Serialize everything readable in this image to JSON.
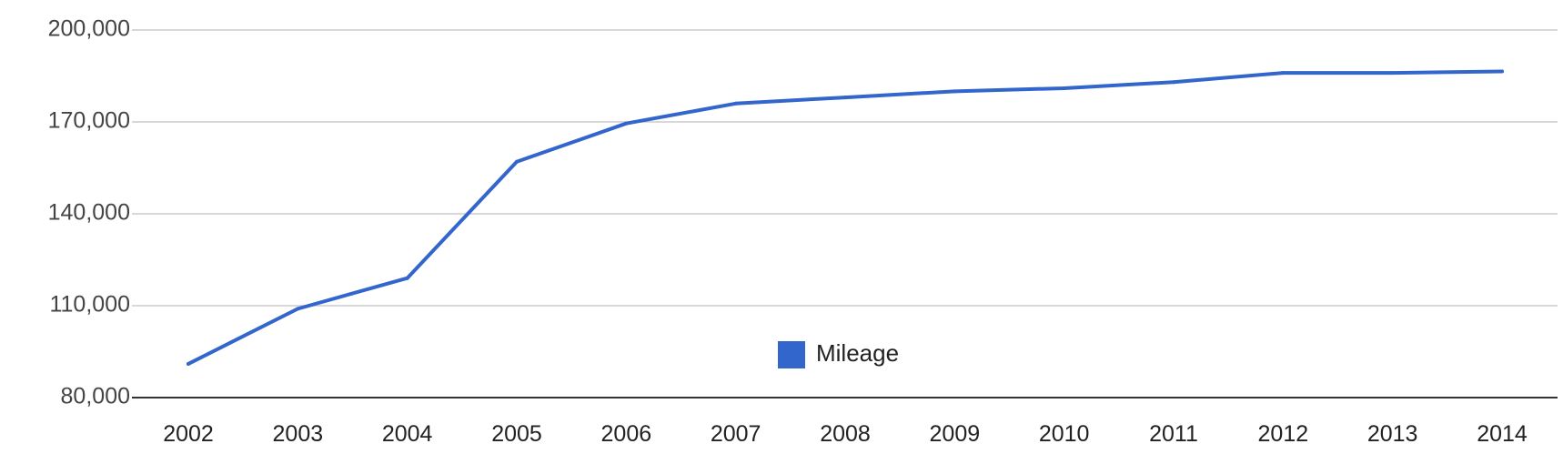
{
  "chart_data": {
    "type": "line",
    "title": "",
    "xlabel": "",
    "ylabel": "",
    "x": [
      "2002",
      "2003",
      "2004",
      "2005",
      "2006",
      "2007",
      "2008",
      "2009",
      "2010",
      "2011",
      "2012",
      "2013",
      "2014"
    ],
    "series": [
      {
        "name": "Mileage",
        "color": "#3366cc",
        "values": [
          91000,
          109000,
          119000,
          157000,
          169500,
          176000,
          178000,
          180000,
          181000,
          183000,
          186000,
          186000,
          186500
        ]
      }
    ],
    "yticks": [
      80000,
      110000,
      140000,
      170000,
      200000
    ],
    "ytick_labels": [
      "80,000",
      "110,000",
      "140,000",
      "170,000",
      "200,000"
    ],
    "ylim": [
      80000,
      200000
    ],
    "grid": true,
    "legend_position": "inside-bottom-center"
  }
}
